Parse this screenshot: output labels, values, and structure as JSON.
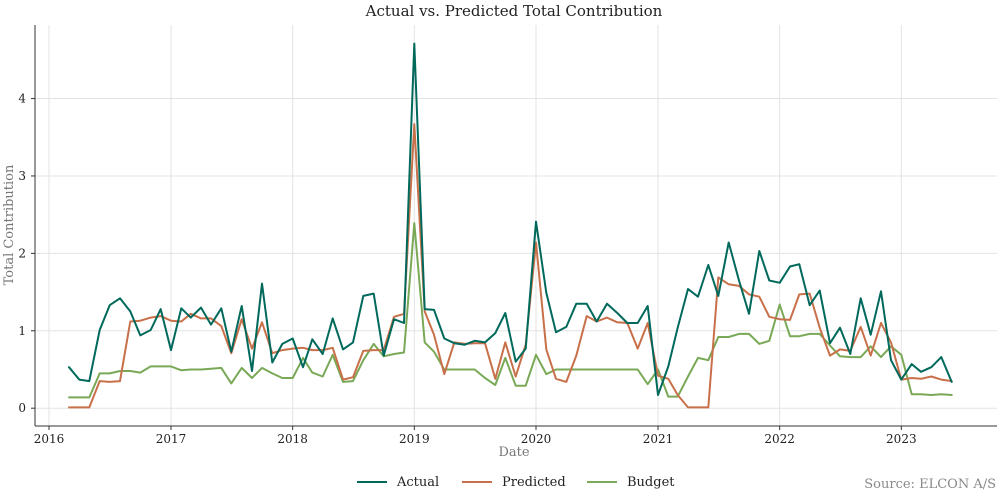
{
  "chart_data": {
    "type": "line",
    "title": "Actual vs. Predicted Total Contribution",
    "xlabel": "Date",
    "ylabel": "Total Contribution",
    "source": "Source: ELCON A/S",
    "xlim": [
      "2015-11-20",
      "2023-10-15"
    ],
    "ylim": [
      -0.23,
      4.95
    ],
    "x_ticks": [
      "2016",
      "2017",
      "2018",
      "2019",
      "2020",
      "2021",
      "2022",
      "2023"
    ],
    "y_ticks": [
      "0",
      "1",
      "2",
      "3",
      "4"
    ],
    "grid": true,
    "legend_position": "bottom-center",
    "x": [
      "2016-03",
      "2016-04",
      "2016-05",
      "2016-06",
      "2016-07",
      "2016-08",
      "2016-09",
      "2016-10",
      "2016-11",
      "2016-12",
      "2017-01",
      "2017-02",
      "2017-03",
      "2017-04",
      "2017-05",
      "2017-06",
      "2017-07",
      "2017-08",
      "2017-09",
      "2017-10",
      "2017-11",
      "2017-12",
      "2018-01",
      "2018-02",
      "2018-03",
      "2018-04",
      "2018-05",
      "2018-06",
      "2018-07",
      "2018-08",
      "2018-09",
      "2018-10",
      "2018-11",
      "2018-12",
      "2019-01",
      "2019-02",
      "2019-03",
      "2019-04",
      "2019-05",
      "2019-06",
      "2019-07",
      "2019-08",
      "2019-09",
      "2019-10",
      "2019-11",
      "2019-12",
      "2020-01",
      "2020-02",
      "2020-03",
      "2020-04",
      "2020-05",
      "2020-06",
      "2020-07",
      "2020-08",
      "2020-09",
      "2020-10",
      "2020-11",
      "2020-12",
      "2021-01",
      "2021-02",
      "2021-03",
      "2021-04",
      "2021-05",
      "2021-06",
      "2021-07",
      "2021-08",
      "2021-09",
      "2021-10",
      "2021-11",
      "2021-12",
      "2022-01",
      "2022-02",
      "2022-03",
      "2022-04",
      "2022-05",
      "2022-06",
      "2022-07",
      "2022-08",
      "2022-09",
      "2022-10",
      "2022-11",
      "2022-12",
      "2023-01",
      "2023-02",
      "2023-03",
      "2023-04",
      "2023-05",
      "2023-06"
    ],
    "series": [
      {
        "name": "Actual",
        "color": "#00695c",
        "values": [
          0.53,
          0.37,
          0.35,
          1.01,
          1.33,
          1.42,
          1.25,
          0.94,
          1.01,
          1.28,
          0.75,
          1.29,
          1.17,
          1.3,
          1.08,
          1.29,
          0.73,
          1.32,
          0.48,
          1.61,
          0.59,
          0.83,
          0.9,
          0.53,
          0.89,
          0.7,
          1.16,
          0.76,
          0.85,
          1.45,
          1.48,
          0.68,
          1.15,
          1.1,
          4.71,
          1.28,
          1.27,
          0.9,
          0.84,
          0.82,
          0.87,
          0.85,
          0.97,
          1.23,
          0.6,
          0.77,
          2.41,
          1.49,
          0.98,
          1.05,
          1.35,
          1.35,
          1.12,
          1.35,
          1.23,
          1.1,
          1.1,
          1.32,
          0.17,
          0.54,
          1.04,
          1.54,
          1.44,
          1.85,
          1.45,
          2.14,
          1.65,
          1.22,
          2.03,
          1.65,
          1.62,
          1.83,
          1.86,
          1.33,
          1.52,
          0.84,
          1.04,
          0.7,
          1.42,
          0.95,
          1.51,
          0.62,
          0.37,
          0.57,
          0.47,
          0.53,
          0.66,
          0.34
        ]
      },
      {
        "name": "Predicted",
        "color": "#c8704a",
        "values": [
          0.01,
          0.01,
          0.01,
          0.35,
          0.34,
          0.35,
          1.12,
          1.13,
          1.17,
          1.19,
          1.13,
          1.12,
          1.22,
          1.16,
          1.16,
          1.06,
          0.71,
          1.15,
          0.77,
          1.11,
          0.71,
          0.75,
          0.77,
          0.78,
          0.75,
          0.75,
          0.78,
          0.37,
          0.4,
          0.74,
          0.75,
          0.75,
          1.18,
          1.22,
          3.67,
          1.25,
          0.95,
          0.44,
          0.85,
          0.83,
          0.84,
          0.84,
          0.38,
          0.85,
          0.41,
          0.82,
          2.14,
          0.76,
          0.38,
          0.34,
          0.68,
          1.19,
          1.12,
          1.17,
          1.11,
          1.1,
          0.77,
          1.1,
          0.42,
          0.38,
          0.17,
          0.01,
          0.01,
          0.01,
          1.69,
          1.6,
          1.58,
          1.47,
          1.44,
          1.18,
          1.15,
          1.14,
          1.47,
          1.48,
          1.04,
          0.68,
          0.76,
          0.74,
          1.05,
          0.68,
          1.1,
          0.85,
          0.37,
          0.39,
          0.38,
          0.41,
          0.37,
          0.35
        ]
      },
      {
        "name": "Budget",
        "color": "#79a957",
        "values": [
          0.14,
          0.14,
          0.14,
          0.45,
          0.45,
          0.48,
          0.48,
          0.46,
          0.54,
          0.54,
          0.54,
          0.49,
          0.5,
          0.5,
          0.51,
          0.52,
          0.32,
          0.52,
          0.39,
          0.52,
          0.45,
          0.39,
          0.39,
          0.65,
          0.46,
          0.41,
          0.69,
          0.34,
          0.35,
          0.62,
          0.83,
          0.67,
          0.7,
          0.72,
          2.39,
          0.85,
          0.73,
          0.5,
          0.5,
          0.5,
          0.5,
          0.39,
          0.3,
          0.65,
          0.29,
          0.29,
          0.69,
          0.44,
          0.5,
          0.5,
          0.5,
          0.5,
          0.5,
          0.5,
          0.5,
          0.5,
          0.5,
          0.31,
          0.5,
          0.15,
          0.15,
          0.41,
          0.65,
          0.62,
          0.92,
          0.92,
          0.96,
          0.96,
          0.83,
          0.87,
          1.34,
          0.93,
          0.93,
          0.96,
          0.96,
          0.81,
          0.67,
          0.66,
          0.66,
          0.8,
          0.66,
          0.8,
          0.69,
          0.18,
          0.18,
          0.17,
          0.18,
          0.17
        ]
      }
    ]
  }
}
